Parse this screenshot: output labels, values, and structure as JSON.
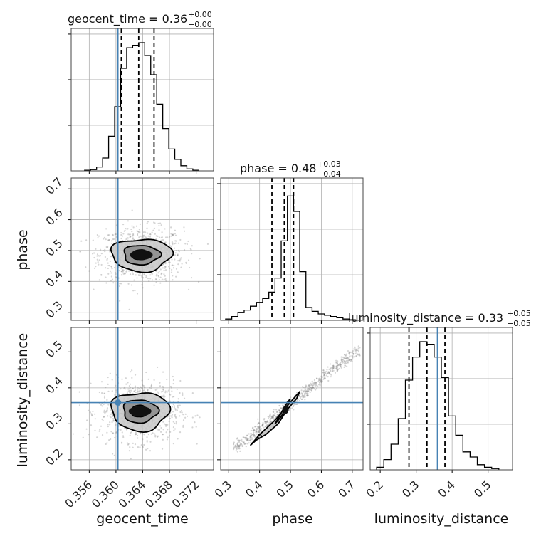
{
  "chart_data": {
    "type": "corner",
    "parameters": [
      "geocent_time",
      "phase",
      "luminosity_distance"
    ],
    "truths": {
      "geocent_time": 0.3603,
      "phase": null,
      "luminosity_distance": 0.359
    },
    "colors": {
      "truth": "#4682b4",
      "hist": "#000000",
      "grid": "#b0b0b0",
      "scatter": "#888888"
    },
    "titles": {
      "geocent_time": {
        "label": "geocent_time = 0.36",
        "plus": "+0.00",
        "minus": "−0.00"
      },
      "phase": {
        "label": "phase = 0.48",
        "plus": "+0.03",
        "minus": "−0.04"
      },
      "luminosity_distance": {
        "label": "luminosity_distance = 0.33",
        "plus": "+0.05",
        "minus": "−0.05"
      }
    },
    "axes": {
      "geocent_time": {
        "range": [
          0.3533,
          0.3746
        ],
        "ticks": [
          "0.356",
          "0.360",
          "0.364",
          "0.368",
          "0.372"
        ],
        "tick_values": [
          0.356,
          0.36,
          0.364,
          0.368,
          0.372
        ]
      },
      "phase": {
        "range": [
          0.274,
          0.735
        ],
        "ticks": [
          "0.3",
          "0.4",
          "0.5",
          "0.6",
          "0.7"
        ],
        "tick_values": [
          0.3,
          0.4,
          0.5,
          0.6,
          0.7
        ]
      },
      "luminosity_distance": {
        "range": [
          0.172,
          0.568
        ],
        "ticks": [
          "0.2",
          "0.3",
          "0.4",
          "0.5"
        ],
        "tick_values": [
          0.2,
          0.3,
          0.4,
          0.5
        ]
      }
    },
    "histograms": {
      "geocent_time": {
        "edges": [
          0.3553,
          0.3562,
          0.3571,
          0.358,
          0.3589,
          0.3598,
          0.3607,
          0.3616,
          0.3625,
          0.3634,
          0.3643,
          0.3652,
          0.3661,
          0.367,
          0.3679,
          0.3688,
          0.3697,
          0.3706,
          0.3715,
          0.3724
        ],
        "counts": [
          0.005,
          0.01,
          0.03,
          0.1,
          0.27,
          0.5,
          0.8,
          0.96,
          0.98,
          1.0,
          0.9,
          0.75,
          0.52,
          0.33,
          0.17,
          0.09,
          0.04,
          0.015,
          0.005
        ],
        "quantiles": [
          0.3608,
          0.3634,
          0.3657
        ]
      },
      "phase": {
        "edges": [
          0.29,
          0.31,
          0.33,
          0.35,
          0.37,
          0.39,
          0.41,
          0.43,
          0.45,
          0.47,
          0.49,
          0.51,
          0.53,
          0.55,
          0.57,
          0.59,
          0.61,
          0.63,
          0.65,
          0.67,
          0.69,
          0.71
        ],
        "counts": [
          0.01,
          0.03,
          0.06,
          0.08,
          0.11,
          0.14,
          0.17,
          0.22,
          0.33,
          0.62,
          0.97,
          0.85,
          0.38,
          0.1,
          0.07,
          0.05,
          0.04,
          0.03,
          0.02,
          0.01,
          0.005
        ],
        "quantiles": [
          0.44,
          0.48,
          0.51
        ]
      },
      "luminosity_distance": {
        "edges": [
          0.19,
          0.21,
          0.23,
          0.25,
          0.27,
          0.29,
          0.31,
          0.33,
          0.35,
          0.37,
          0.39,
          0.41,
          0.43,
          0.45,
          0.47,
          0.49,
          0.51,
          0.53
        ],
        "counts": [
          0.02,
          0.08,
          0.2,
          0.4,
          0.7,
          0.88,
          1.0,
          0.98,
          0.88,
          0.72,
          0.42,
          0.27,
          0.14,
          0.1,
          0.04,
          0.02,
          0.01
        ],
        "quantiles": [
          0.28,
          0.33,
          0.38
        ]
      }
    },
    "contours": {
      "phase_vs_geocent_time": {
        "center": [
          0.3638,
          0.486
        ],
        "sigma": [
          0.00225,
          0.0275
        ],
        "levels": [
          0.6,
          1.2,
          2.0
        ]
      },
      "luminosity_distance_vs_geocent_time": {
        "center": [
          0.3636,
          0.335
        ],
        "sigma": [
          0.00215,
          0.028
        ],
        "levels": [
          0.6,
          1.2,
          2.0
        ]
      },
      "luminosity_distance_vs_phase": {
        "line": {
          "slope": 0.69,
          "intercept": 0.01
        },
        "range": [
          0.32,
          0.72
        ],
        "center": [
          0.48,
          0.34
        ]
      }
    },
    "grid": true
  }
}
